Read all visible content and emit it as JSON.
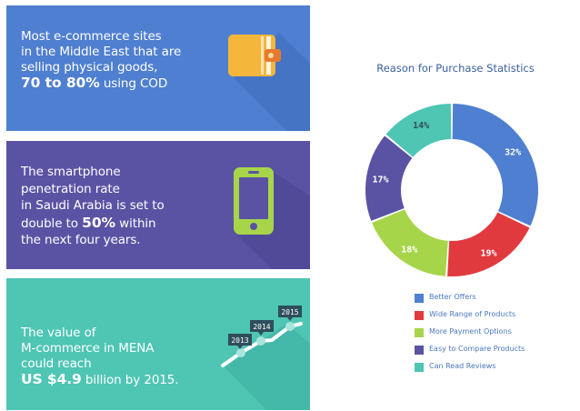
{
  "cards": [
    {
      "lines": [
        "Most e-commerce sites",
        "in the Middle East that are",
        "selling physical goods,"
      ],
      "highlight": "70 to 80%",
      "highlight_suffix": " using COD",
      "icon": "wallet-icon",
      "color": "#4f7fd0"
    },
    {
      "lines": [
        "The smartphone",
        "penetration rate",
        "in Saudi Arabia is set to"
      ],
      "line4_prefix": "double to ",
      "highlight": "50%",
      "highlight_suffix": " within",
      "line5": "the next four years.",
      "icon": "smartphone-icon",
      "color": "#5a53a4"
    },
    {
      "lines": [
        "The value of",
        "M-commerce in MENA",
        "could reach"
      ],
      "highlight": "US $4.9",
      "highlight_suffix": " billion by 2015.",
      "icon": "growth-line-icon",
      "years": [
        "2013",
        "2014",
        "2015"
      ],
      "color": "#4fc5b4"
    }
  ],
  "chart_data": {
    "type": "pie",
    "title": "Reason for Purchase Statistics",
    "categories": [
      "Better Offers",
      "Wide Range of Products",
      "More Payment Options",
      "Easy to Compare Products",
      "Can Read Reviews"
    ],
    "values": [
      32,
      19,
      18,
      17,
      14
    ],
    "labels": [
      "32%",
      "19%",
      "18%",
      "17%",
      "14%"
    ],
    "colors": [
      "#4f7fd0",
      "#e03a3e",
      "#a7d54a",
      "#5a53a4",
      "#4fc5b4"
    ],
    "donut": true,
    "legend_position": "bottom"
  }
}
